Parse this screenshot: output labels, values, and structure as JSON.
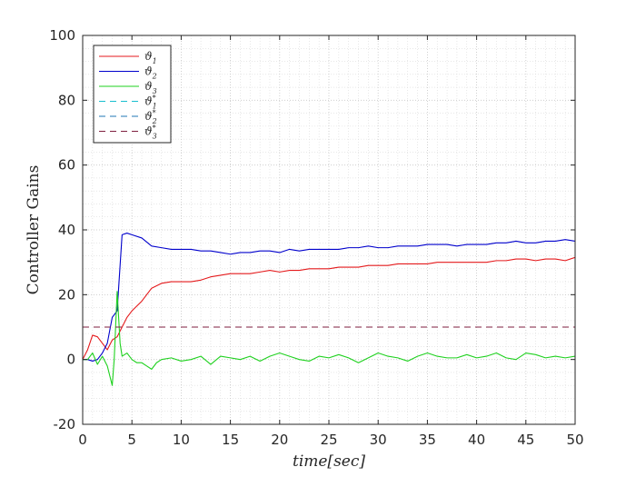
{
  "chart_data": {
    "type": "line",
    "xlabel": "time[sec]",
    "ylabel": "Controller Gains",
    "xlim": [
      0,
      50
    ],
    "ylim": [
      -20,
      100
    ],
    "xticks": [
      0,
      5,
      10,
      15,
      20,
      25,
      30,
      35,
      40,
      45,
      50
    ],
    "yticks": [
      -20,
      0,
      20,
      40,
      60,
      80,
      100
    ],
    "grid": "on (major and minor, dotted)",
    "legend_position": "top-left",
    "series": [
      {
        "name": "ϑ1",
        "color": "#e41a1c",
        "style": "solid",
        "x": [
          0,
          0.5,
          1,
          1.5,
          2,
          2.5,
          3,
          3.5,
          4,
          4.5,
          5,
          6,
          7,
          8,
          9,
          10,
          11,
          12,
          13,
          14,
          15,
          16,
          17,
          18,
          19,
          20,
          21,
          22,
          23,
          24,
          25,
          26,
          27,
          28,
          29,
          30,
          31,
          32,
          33,
          34,
          35,
          36,
          37,
          38,
          39,
          40,
          41,
          42,
          43,
          44,
          45,
          46,
          47,
          48,
          49,
          50
        ],
        "values": [
          0,
          3,
          7.5,
          7,
          5,
          3,
          6,
          7,
          10,
          13,
          15,
          18,
          22,
          23.5,
          24,
          24,
          24,
          24.5,
          25.5,
          26,
          26.5,
          26.5,
          26.5,
          27,
          27.5,
          27,
          27.5,
          27.5,
          28,
          28,
          28,
          28.5,
          28.5,
          28.5,
          29,
          29,
          29,
          29.5,
          29.5,
          29.5,
          29.5,
          30,
          30,
          30,
          30,
          30,
          30,
          30.5,
          30.5,
          31,
          31,
          30.5,
          31,
          31,
          30.5,
          31.5
        ]
      },
      {
        "name": "ϑ2",
        "color": "#0000cc",
        "style": "solid",
        "x": [
          0,
          0.5,
          1,
          1.5,
          2,
          2.5,
          3,
          3.5,
          4,
          4.5,
          5,
          6,
          7,
          8,
          9,
          10,
          11,
          12,
          13,
          14,
          15,
          16,
          17,
          18,
          19,
          20,
          21,
          22,
          23,
          24,
          25,
          26,
          27,
          28,
          29,
          30,
          31,
          32,
          33,
          34,
          35,
          36,
          37,
          38,
          39,
          40,
          41,
          42,
          43,
          44,
          45,
          46,
          47,
          48,
          49,
          50
        ],
        "values": [
          0,
          0,
          -0.5,
          0,
          2,
          5,
          13,
          15,
          38.5,
          39,
          38.5,
          37.5,
          35,
          34.5,
          34,
          34,
          34,
          33.5,
          33.5,
          33,
          32.5,
          33,
          33,
          33.5,
          33.5,
          33,
          34,
          33.5,
          34,
          34,
          34,
          34,
          34.5,
          34.5,
          35,
          34.5,
          34.5,
          35,
          35,
          35,
          35.5,
          35.5,
          35.5,
          35,
          35.5,
          35.5,
          35.5,
          36,
          36,
          36.5,
          36,
          36,
          36.5,
          36.5,
          37,
          36.5
        ]
      },
      {
        "name": "ϑ3",
        "color": "#1fd11f",
        "style": "solid",
        "x": [
          0,
          0.5,
          1,
          1.5,
          2,
          2.5,
          3,
          3.2,
          3.5,
          3.8,
          4,
          4.5,
          5,
          5.5,
          6,
          6.5,
          7,
          7.5,
          8,
          9,
          10,
          11,
          12,
          13,
          14,
          15,
          16,
          17,
          18,
          19,
          20,
          21,
          22,
          23,
          24,
          25,
          26,
          27,
          28,
          29,
          30,
          31,
          32,
          33,
          34,
          35,
          36,
          37,
          38,
          39,
          40,
          41,
          42,
          43,
          44,
          45,
          46,
          47,
          48,
          49,
          50
        ],
        "values": [
          0,
          0,
          2,
          -1.5,
          1,
          -2,
          -8,
          0,
          21,
          5,
          1,
          2,
          0,
          -1,
          -1,
          -2,
          -3,
          -1,
          0,
          0.5,
          -0.5,
          0,
          1,
          -1.5,
          1,
          0.5,
          0,
          1,
          -0.5,
          1,
          2,
          1,
          0,
          -0.5,
          1,
          0.5,
          1.5,
          0.5,
          -1,
          0.5,
          2,
          1,
          0.5,
          -0.5,
          1,
          2,
          1,
          0.5,
          0.5,
          1.5,
          0.5,
          1,
          2,
          0.5,
          0,
          2,
          1.5,
          0.5,
          1,
          0.5,
          1
        ]
      },
      {
        "name": "ϑ1*",
        "color": "#17becf",
        "style": "dashed",
        "x": [
          0,
          50
        ],
        "values": [
          100,
          100
        ]
      },
      {
        "name": "ϑ2*",
        "color": "#1f77b4",
        "style": "dashed",
        "x": [
          0,
          50
        ],
        "values": [
          100,
          100
        ]
      },
      {
        "name": "ϑ3*",
        "color": "#7f1f3f",
        "style": "dashed",
        "x": [
          0,
          50
        ],
        "values": [
          10,
          10
        ]
      }
    ]
  }
}
